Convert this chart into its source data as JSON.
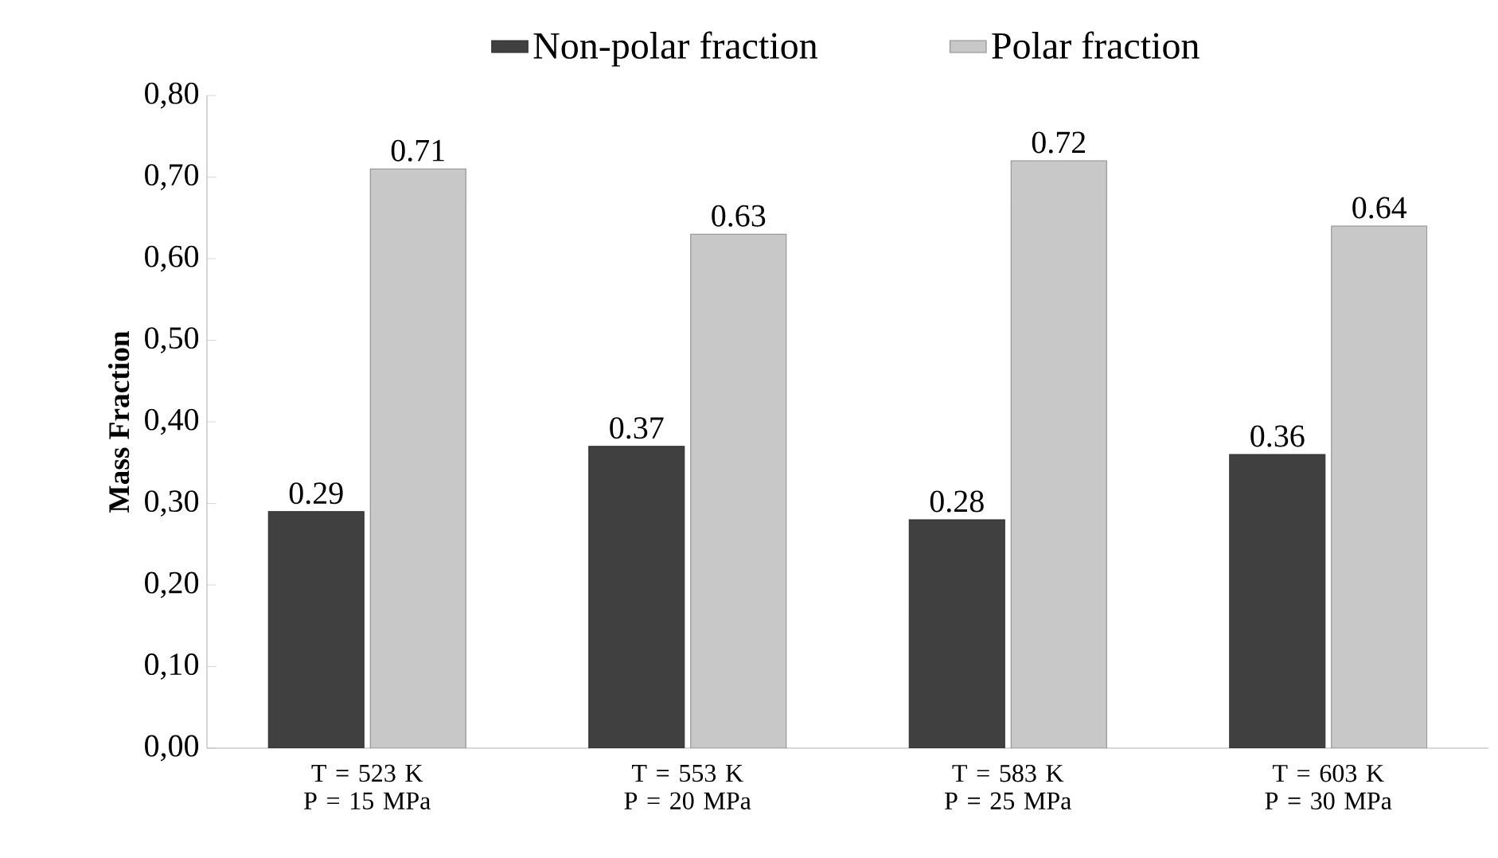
{
  "chart_data": {
    "type": "bar",
    "ylabel": "Mass Fraction",
    "categories": [
      "T = 523 K P = 15 MPa",
      "T = 553 K P = 20 MPa",
      "T = 583 K P = 25 MPa",
      "T = 603 K P = 30 MPa"
    ],
    "series": [
      {
        "name": "Non-polar fraction",
        "color": "#404040",
        "values": [
          0.29,
          0.37,
          0.28,
          0.36
        ]
      },
      {
        "name": "Polar fraction",
        "color": "#c8c8c8",
        "values": [
          0.71,
          0.63,
          0.72,
          0.64
        ]
      }
    ],
    "ylim": [
      0,
      0.8
    ],
    "yticks": [
      {
        "value": 0,
        "label": "0,00"
      },
      {
        "value": 0.1,
        "label": "0,10"
      },
      {
        "value": 0.2,
        "label": "0,20"
      },
      {
        "value": 0.3,
        "label": "0,30"
      },
      {
        "value": 0.4,
        "label": "0,40"
      },
      {
        "value": 0.5,
        "label": "0,50"
      },
      {
        "value": 0.6,
        "label": "0,60"
      },
      {
        "value": 0.7,
        "label": "0,70"
      },
      {
        "value": 0.8,
        "label": "0,80"
      }
    ],
    "data_labels": true,
    "grid": false,
    "legend": "top"
  }
}
